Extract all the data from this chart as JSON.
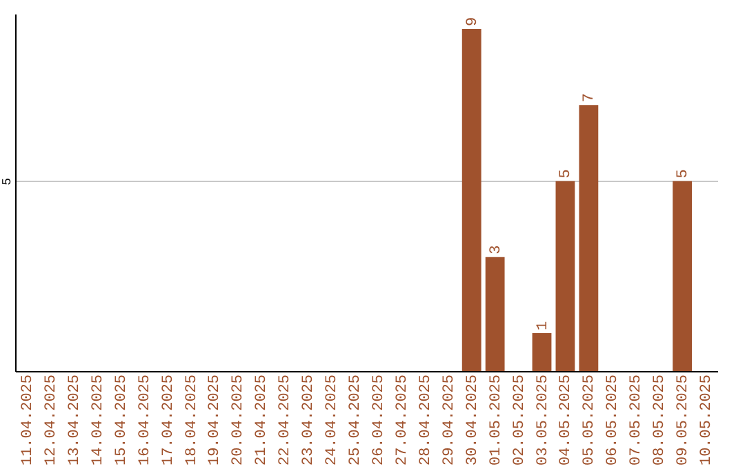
{
  "chart_data": {
    "type": "bar",
    "categories": [
      "11.04.2025",
      "12.04.2025",
      "13.04.2025",
      "14.04.2025",
      "15.04.2025",
      "16.04.2025",
      "17.04.2025",
      "18.04.2025",
      "19.04.2025",
      "20.04.2025",
      "21.04.2025",
      "22.04.2025",
      "23.04.2025",
      "24.04.2025",
      "25.04.2025",
      "26.04.2025",
      "27.04.2025",
      "28.04.2025",
      "29.04.2025",
      "30.04.2025",
      "01.05.2025",
      "02.05.2025",
      "03.05.2025",
      "04.05.2025",
      "05.05.2025",
      "06.05.2025",
      "07.05.2025",
      "08.05.2025",
      "09.05.2025",
      "10.05.2025"
    ],
    "values": [
      null,
      null,
      null,
      null,
      null,
      null,
      null,
      null,
      null,
      null,
      null,
      null,
      null,
      null,
      null,
      null,
      null,
      null,
      null,
      9,
      3,
      null,
      1,
      5,
      7,
      null,
      null,
      null,
      5,
      null
    ],
    "data_labels": true,
    "color": "#a0522d",
    "ylim": [
      0,
      9.4
    ],
    "yticks": [
      5
    ],
    "grid": "y"
  }
}
